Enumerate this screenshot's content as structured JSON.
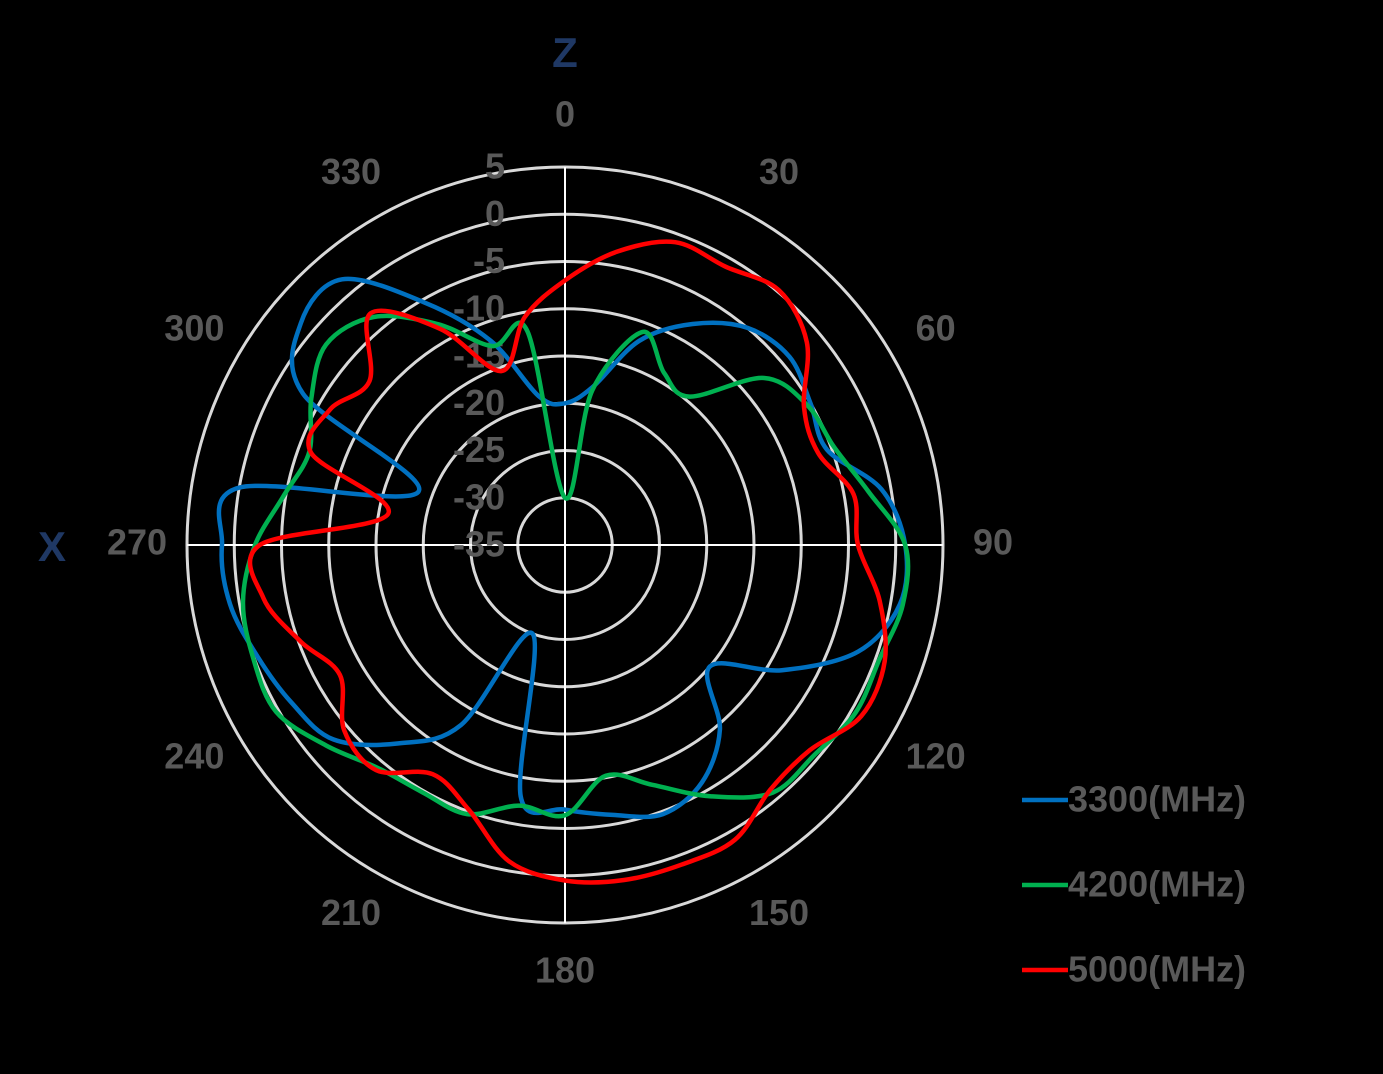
{
  "chart_data": {
    "type": "polar",
    "top_label": "Z",
    "left_label": "X",
    "x": [
      0,
      10,
      20,
      30,
      40,
      50,
      60,
      70,
      80,
      90,
      100,
      110,
      120,
      130,
      140,
      150,
      160,
      170,
      180,
      190,
      200,
      210,
      220,
      230,
      240,
      250,
      260,
      270,
      280,
      290,
      300,
      310,
      320,
      330,
      340,
      350
    ],
    "xticks": [
      0,
      30,
      60,
      90,
      120,
      150,
      180,
      210,
      240,
      270,
      300,
      330
    ],
    "ylim": [
      -35,
      5
    ],
    "yticks": [
      -35,
      -30,
      -25,
      -20,
      -15,
      -10,
      -5,
      0,
      5
    ],
    "grid": true,
    "legend": "bottom-right",
    "series": [
      {
        "name": "3300(MHz)",
        "color": "#0070c0",
        "values": [
          -20,
          -18,
          -12,
          -8,
          -5,
          -4,
          -5,
          -5.5,
          -1,
          1,
          1,
          -2,
          -8.5,
          -15,
          -9.5,
          -6,
          -4.7,
          -6,
          -7,
          -8,
          -25,
          -13,
          -7.6,
          -3,
          -1.6,
          -0.4,
          1,
          1.3,
          0,
          -18.5,
          -3,
          1.5,
          1.7,
          -5.4,
          -12,
          -19
        ]
      },
      {
        "name": "4200(MHz)",
        "color": "#00b050",
        "values": [
          -30,
          -18.4,
          -11,
          -14,
          -14.5,
          -7.5,
          -5.4,
          -4.7,
          -2.4,
          1,
          1.3,
          0.4,
          0.5,
          -0.5,
          -0.8,
          -4.3,
          -8,
          -10.2,
          -6.4,
          -7,
          -4.7,
          -4.8,
          -4.2,
          -2,
          0.3,
          0.1,
          -0.4,
          -2.2,
          -4.8,
          -6.2,
          -4,
          -2,
          -3.5,
          -8,
          -12.6,
          -12
        ]
      },
      {
        "name": "5000(MHz)",
        "color": "#ff0000",
        "values": [
          -7,
          -3.5,
          -0.9,
          -1,
          0.2,
          -1.6,
          -5.8,
          -6.5,
          -4,
          -4,
          -1.2,
          1,
          1.2,
          -1.2,
          -1.2,
          1,
          1,
          1,
          0.5,
          -1,
          -5.2,
          -7,
          -3.9,
          -4.5,
          -7.5,
          -5.2,
          -2.6,
          -2.7,
          -16,
          -6.4,
          -6.3,
          -8,
          -3,
          -8.6,
          -15.4,
          -10.5
        ]
      }
    ]
  }
}
